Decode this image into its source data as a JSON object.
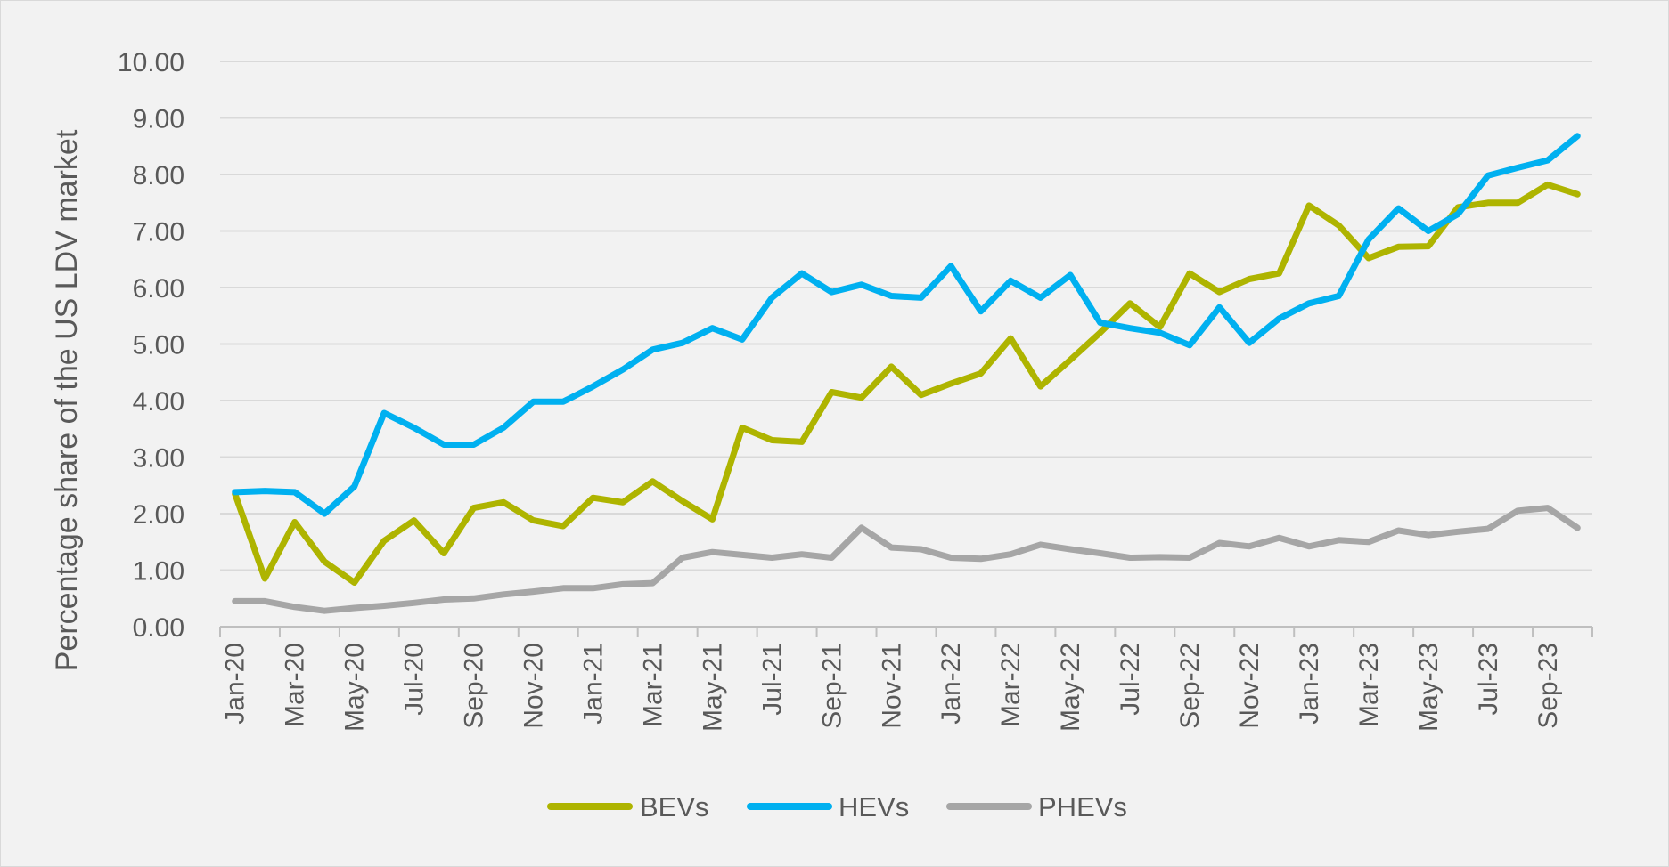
{
  "chart_data": {
    "type": "line",
    "ylabel": "Percentage share of the US LDV market",
    "xlabel": "",
    "ylim": [
      0,
      10
    ],
    "y_ticks": [
      "0.00",
      "1.00",
      "2.00",
      "3.00",
      "4.00",
      "5.00",
      "6.00",
      "7.00",
      "8.00",
      "9.00",
      "10.00"
    ],
    "grid": "horizontal",
    "legend_position": "bottom",
    "x": [
      "Jan-20",
      "Feb-20",
      "Mar-20",
      "Apr-20",
      "May-20",
      "Jun-20",
      "Jul-20",
      "Aug-20",
      "Sep-20",
      "Oct-20",
      "Nov-20",
      "Dec-20",
      "Jan-21",
      "Feb-21",
      "Mar-21",
      "Apr-21",
      "May-21",
      "Jun-21",
      "Jul-21",
      "Aug-21",
      "Sep-21",
      "Oct-21",
      "Nov-21",
      "Dec-21",
      "Jan-22",
      "Feb-22",
      "Mar-22",
      "Apr-22",
      "May-22",
      "Jun-22",
      "Jul-22",
      "Aug-22",
      "Sep-22",
      "Oct-22",
      "Nov-22",
      "Dec-22",
      "Jan-23",
      "Feb-23",
      "Mar-23",
      "Apr-23",
      "May-23",
      "Jun-23",
      "Jul-23",
      "Aug-23",
      "Sep-23",
      "Oct-23"
    ],
    "x_tick_labels": [
      "Jan-20",
      "Mar-20",
      "May-20",
      "Jul-20",
      "Sep-20",
      "Nov-20",
      "Jan-21",
      "Mar-21",
      "May-21",
      "Jul-21",
      "Sep-21",
      "Nov-21",
      "Jan-22",
      "Mar-22",
      "May-22",
      "Jul-22",
      "Sep-22",
      "Nov-22",
      "Jan-23",
      "Mar-23",
      "May-23",
      "Jul-23",
      "Sep-23"
    ],
    "series": [
      {
        "name": "BEVs",
        "color": "#aeb400",
        "values": [
          2.35,
          0.85,
          1.85,
          1.15,
          0.78,
          1.52,
          1.88,
          1.3,
          2.1,
          2.2,
          1.88,
          1.78,
          2.28,
          2.2,
          2.57,
          2.22,
          1.9,
          3.52,
          3.3,
          3.27,
          4.15,
          4.05,
          4.6,
          4.1,
          4.3,
          4.48,
          5.1,
          4.25,
          4.72,
          5.2,
          5.72,
          5.3,
          6.25,
          5.92,
          6.15,
          6.25,
          7.45,
          7.1,
          6.52,
          6.72,
          6.73,
          7.42,
          7.5,
          7.5,
          7.82,
          7.65
        ]
      },
      {
        "name": "HEVs",
        "color": "#00b0f0",
        "values": [
          2.38,
          2.4,
          2.38,
          2.0,
          2.48,
          3.78,
          3.52,
          3.22,
          3.22,
          3.52,
          3.98,
          3.98,
          4.25,
          4.55,
          4.9,
          5.02,
          5.28,
          5.08,
          5.82,
          6.25,
          5.92,
          6.05,
          5.85,
          5.82,
          6.38,
          5.58,
          6.12,
          5.82,
          6.22,
          5.38,
          5.28,
          5.2,
          4.98,
          5.65,
          5.02,
          5.45,
          5.72,
          5.85,
          6.85,
          7.4,
          7.0,
          7.3,
          7.98,
          8.12,
          8.25,
          8.68
        ]
      },
      {
        "name": "PHEVs",
        "color": "#a6a6a6",
        "values": [
          0.45,
          0.45,
          0.35,
          0.28,
          0.33,
          0.37,
          0.42,
          0.48,
          0.5,
          0.57,
          0.62,
          0.68,
          0.68,
          0.75,
          0.77,
          1.22,
          1.32,
          1.27,
          1.22,
          1.28,
          1.22,
          1.75,
          1.4,
          1.37,
          1.22,
          1.2,
          1.28,
          1.45,
          1.37,
          1.3,
          1.22,
          1.23,
          1.22,
          1.48,
          1.42,
          1.57,
          1.42,
          1.53,
          1.5,
          1.7,
          1.62,
          1.68,
          1.73,
          2.05,
          2.1,
          1.75
        ]
      }
    ]
  }
}
